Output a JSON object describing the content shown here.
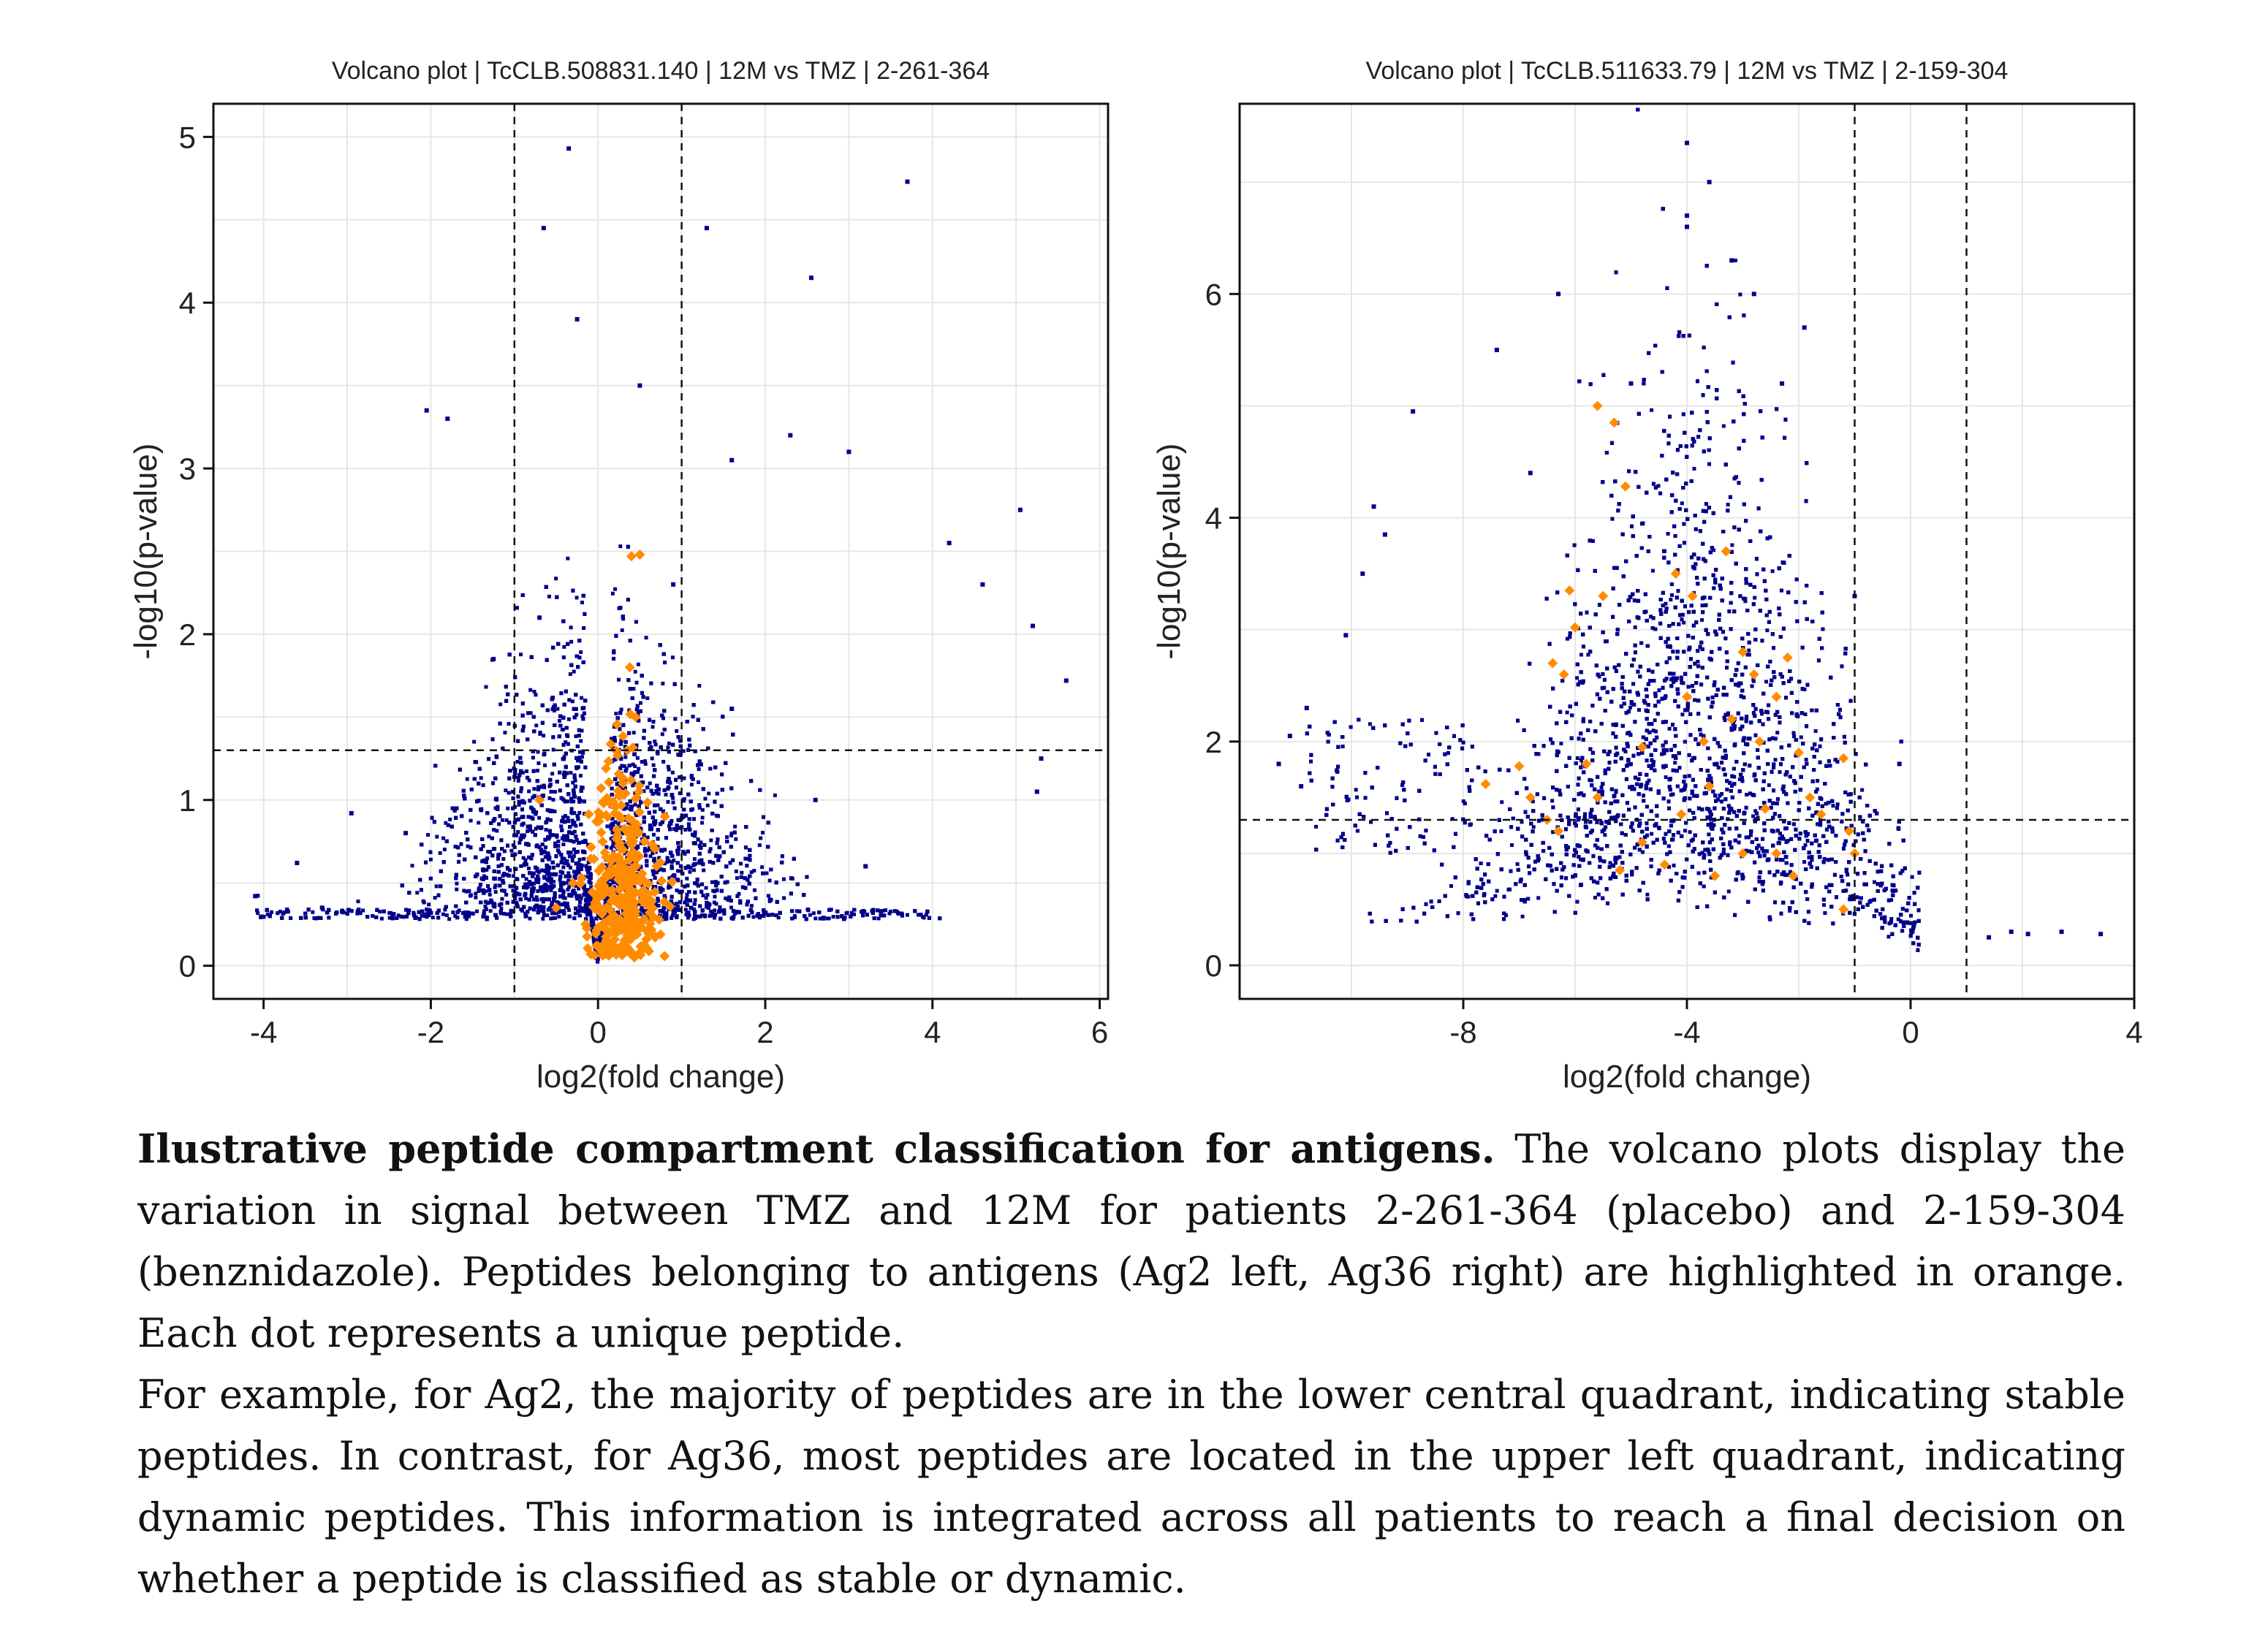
{
  "chart_data": [
    {
      "type": "scatter",
      "title": "Volcano plot | TcCLB.508831.140 | 12M vs TMZ | 2-261-364",
      "xlabel": "log2(fold change)",
      "ylabel": "-log10(p-value)",
      "xlim": [
        -4.6,
        6.1
      ],
      "ylim": [
        -0.2,
        5.2
      ],
      "xticks": [
        -4,
        -2,
        0,
        2,
        4,
        6
      ],
      "yticks": [
        0,
        1,
        2,
        3,
        4,
        5
      ],
      "grid": true,
      "reference_lines": {
        "x": [
          -1,
          1
        ],
        "y": 1.3
      },
      "colors": {
        "background_peptides": "#00008b",
        "antigen_peptides": "#ff8c00"
      },
      "series": [
        {
          "color": "#00008b",
          "points": [
            [
              -0.35,
              4.93
            ],
            [
              3.7,
              4.73
            ],
            [
              -0.65,
              4.45
            ],
            [
              1.3,
              4.45
            ],
            [
              2.55,
              4.15
            ],
            [
              -0.25,
              3.9
            ],
            [
              0.5,
              3.5
            ],
            [
              -2.05,
              3.35
            ],
            [
              1.6,
              3.05
            ],
            [
              -1.8,
              3.3
            ],
            [
              2.3,
              3.2
            ],
            [
              3.0,
              3.1
            ],
            [
              4.2,
              2.55
            ],
            [
              5.05,
              2.75
            ],
            [
              4.6,
              2.3
            ],
            [
              5.2,
              2.05
            ],
            [
              5.6,
              1.72
            ],
            [
              5.3,
              1.25
            ],
            [
              5.25,
              1.05
            ],
            [
              -2.95,
              0.92
            ],
            [
              -3.6,
              0.62
            ],
            [
              -4.1,
              0.42
            ],
            [
              -3.3,
              0.35
            ],
            [
              0.9,
              2.3
            ],
            [
              -0.7,
              2.1
            ],
            [
              -1.25,
              1.85
            ],
            [
              1.6,
              1.55
            ],
            [
              2.6,
              1.0
            ],
            [
              -2.3,
              0.8
            ],
            [
              3.2,
              0.6
            ]
          ]
        },
        {
          "color": "#ff8c00",
          "points": [
            [
              0.4,
              2.47
            ],
            [
              0.5,
              2.48
            ],
            [
              0.38,
              1.8
            ],
            [
              0.45,
              1.5
            ],
            [
              0.35,
              1.3
            ],
            [
              0.3,
              1.1
            ],
            [
              0.25,
              0.9
            ],
            [
              -0.7,
              1.0
            ],
            [
              0.8,
              0.9
            ],
            [
              0.3,
              0.7
            ],
            [
              0.1,
              0.55
            ],
            [
              0.4,
              0.45
            ],
            [
              -0.3,
              0.5
            ],
            [
              0.2,
              0.3
            ],
            [
              0.05,
              0.12
            ],
            [
              0.6,
              0.4
            ],
            [
              -0.5,
              0.35
            ],
            [
              0.15,
              0.2
            ],
            [
              -0.15,
              0.25
            ],
            [
              0.7,
              0.6
            ]
          ]
        }
      ]
    },
    {
      "type": "scatter",
      "title": "Volcano plot | TcCLB.511633.79 | 12M vs TMZ | 2-159-304",
      "xlabel": "log2(fold change)",
      "ylabel": "-log10(p-value)",
      "xlim": [
        -12.0,
        4.0
      ],
      "ylim": [
        -0.3,
        7.7
      ],
      "xticks": [
        -8,
        -4,
        0,
        4
      ],
      "yticks": [
        0,
        2,
        4,
        6
      ],
      "grid": true,
      "reference_lines": {
        "x": [
          -1,
          1
        ],
        "y": 1.3
      },
      "colors": {
        "background_peptides": "#00008b",
        "antigen_peptides": "#ff8c00"
      },
      "series": [
        {
          "color": "#00008b",
          "points": [
            [
              -4.0,
              7.35
            ],
            [
              -3.6,
              7.0
            ],
            [
              -4.0,
              6.7
            ],
            [
              -4.0,
              6.6
            ],
            [
              -3.2,
              6.3
            ],
            [
              -6.3,
              6.0
            ],
            [
              -2.8,
              6.0
            ],
            [
              -1.9,
              5.7
            ],
            [
              -7.4,
              5.5
            ],
            [
              -8.9,
              4.95
            ],
            [
              -9.6,
              4.1
            ],
            [
              -9.4,
              3.85
            ],
            [
              -9.8,
              3.5
            ],
            [
              -10.1,
              2.95
            ],
            [
              -10.8,
              2.3
            ],
            [
              -11.1,
              2.05
            ],
            [
              -11.3,
              1.8
            ],
            [
              -10.9,
              1.6
            ],
            [
              3.4,
              0.28
            ],
            [
              2.7,
              0.3
            ],
            [
              2.1,
              0.28
            ],
            [
              1.8,
              0.3
            ],
            [
              1.4,
              0.25
            ],
            [
              -5.0,
              5.2
            ],
            [
              -2.3,
              5.2
            ],
            [
              -6.8,
              4.4
            ],
            [
              -1.0,
              3.3
            ],
            [
              -0.2,
              1.8
            ]
          ]
        },
        {
          "color": "#ff8c00",
          "points": [
            [
              -5.6,
              5.0
            ],
            [
              -5.3,
              4.85
            ],
            [
              -5.1,
              4.28
            ],
            [
              -6.1,
              3.35
            ],
            [
              -5.5,
              3.3
            ],
            [
              -6.0,
              3.02
            ],
            [
              -6.4,
              2.7
            ],
            [
              -6.2,
              2.6
            ],
            [
              -7.6,
              1.62
            ],
            [
              -7.0,
              1.78
            ],
            [
              -6.8,
              1.5
            ],
            [
              -6.3,
              1.2
            ],
            [
              -5.8,
              1.8
            ],
            [
              -4.8,
              1.95
            ],
            [
              -4.2,
              3.5
            ],
            [
              -3.9,
              3.3
            ],
            [
              -3.7,
              2.0
            ],
            [
              -3.3,
              3.7
            ],
            [
              -3.6,
              1.6
            ],
            [
              -3.0,
              2.8
            ],
            [
              -2.8,
              2.6
            ],
            [
              -2.4,
              2.4
            ],
            [
              -2.2,
              2.75
            ],
            [
              -2.0,
              1.9
            ],
            [
              -1.8,
              1.5
            ],
            [
              -1.2,
              1.85
            ],
            [
              -1.1,
              1.2
            ],
            [
              -1.0,
              1.0
            ],
            [
              -2.6,
              1.4
            ],
            [
              -2.4,
              1.0
            ],
            [
              -3.0,
              1.0
            ],
            [
              -3.5,
              0.8
            ],
            [
              -4.1,
              1.35
            ],
            [
              -4.4,
              0.9
            ],
            [
              -4.8,
              1.1
            ],
            [
              -5.2,
              0.85
            ],
            [
              -5.6,
              1.5
            ],
            [
              -6.5,
              1.3
            ],
            [
              -1.6,
              1.35
            ],
            [
              -2.1,
              0.8
            ],
            [
              -1.2,
              0.5
            ],
            [
              -3.2,
              2.2
            ],
            [
              -2.7,
              2.0
            ],
            [
              -4.0,
              2.4
            ]
          ]
        }
      ]
    }
  ],
  "caption": {
    "bold": "Ilustrative peptide compartment classification for antigens.",
    "para1": "The volcano plots display the variation in signal between TMZ and 12M for patients 2-261-364 (placebo) and 2-159-304 (benznidazole). Peptides belonging to antigens (Ag2 left, Ag36 right) are highlighted in orange. Each dot represents a unique peptide.",
    "para2": "For example, for Ag2, the majority of peptides are in the lower central quadrant, indicating stable peptides. In contrast, for Ag36, most peptides are located in the upper left quadrant, indicating dynamic peptides. This information is integrated across all patients to reach a final decision on whether a peptide is classified as stable or dynamic."
  }
}
